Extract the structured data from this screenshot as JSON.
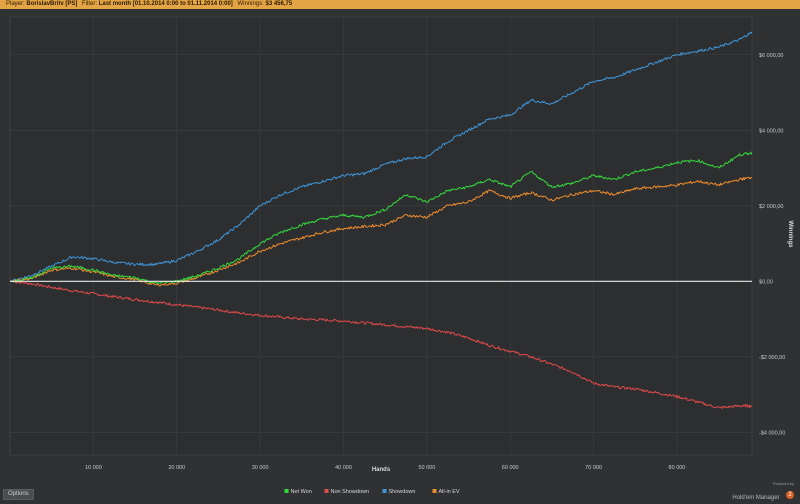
{
  "header": {
    "player_label": "Player:",
    "player_value": "BorislavBritv [PS]",
    "filter_label": "Filter:",
    "filter_value": "Last month [01.10.2014 0:00 to 01.11.2014 0:00]",
    "winnings_label": "Winnings:",
    "winnings_value": "$3 456,75"
  },
  "footer": {
    "options_label": "Options",
    "powered_by": "Powered by",
    "brand_name": "Hold'em Manager",
    "brand_logo": "2"
  },
  "colors": {
    "net_won": "#35d83c",
    "non_showdown": "#e04a4a",
    "showdown": "#3f95d8",
    "all_in_ev": "#ee8c2c",
    "zero_line": "#e8e8e8"
  },
  "chart_data": {
    "type": "line",
    "xlabel": "Hands",
    "ylabel": "Winnings",
    "xlim": [
      0,
      89000
    ],
    "ylim": [
      -4600,
      7000
    ],
    "x_ticks": [
      10000,
      20000,
      30000,
      40000,
      50000,
      60000,
      70000,
      80000
    ],
    "x_tick_labels": [
      "10 000",
      "20 000",
      "30 000",
      "40 000",
      "50 000",
      "60 000",
      "70 000",
      "80 000"
    ],
    "y_ticks": [
      6000,
      4000,
      2000,
      0,
      -2000,
      -4000
    ],
    "y_tick_labels": [
      "$6 000,00",
      "$4 000,00",
      "$2 000,00",
      "$0,00",
      "-$2 000,00",
      "-$4 000,00"
    ],
    "grid": true,
    "legend_position": "bottom-center",
    "x": [
      0,
      2500,
      5000,
      7500,
      10000,
      12500,
      15000,
      17500,
      20000,
      22500,
      25000,
      27500,
      30000,
      32500,
      35000,
      37500,
      40000,
      42500,
      45000,
      47500,
      50000,
      52500,
      55000,
      57500,
      60000,
      62500,
      65000,
      67500,
      70000,
      72500,
      75000,
      77500,
      80000,
      82500,
      85000,
      87500,
      89000
    ],
    "series": [
      {
        "name": "Net Won",
        "color_key": "net_won",
        "values": [
          0,
          80,
          350,
          400,
          300,
          150,
          100,
          -50,
          0,
          150,
          350,
          600,
          1000,
          1300,
          1500,
          1650,
          1750,
          1700,
          1900,
          2300,
          2100,
          2400,
          2500,
          2700,
          2500,
          2900,
          2500,
          2600,
          2800,
          2700,
          2900,
          3000,
          3150,
          3200,
          3000,
          3350,
          3400
        ]
      },
      {
        "name": "Non Showdown",
        "color_key": "non_showdown",
        "values": [
          0,
          -60,
          -160,
          -250,
          -330,
          -410,
          -480,
          -550,
          -620,
          -690,
          -760,
          -840,
          -900,
          -950,
          -1000,
          -1020,
          -1050,
          -1100,
          -1150,
          -1200,
          -1250,
          -1350,
          -1500,
          -1700,
          -1850,
          -2000,
          -2200,
          -2400,
          -2700,
          -2800,
          -2850,
          -2950,
          -3050,
          -3200,
          -3350,
          -3300,
          -3300
        ]
      },
      {
        "name": "Showdown",
        "color_key": "showdown",
        "values": [
          0,
          150,
          400,
          650,
          600,
          500,
          450,
          450,
          550,
          800,
          1100,
          1500,
          2000,
          2300,
          2500,
          2650,
          2800,
          2850,
          3100,
          3250,
          3300,
          3700,
          4000,
          4300,
          4400,
          4800,
          4700,
          5000,
          5300,
          5400,
          5600,
          5800,
          6000,
          6100,
          6200,
          6400,
          6600
        ]
      },
      {
        "name": "All-in EV",
        "color_key": "all_in_ev",
        "values": [
          0,
          70,
          300,
          350,
          250,
          120,
          50,
          -100,
          -50,
          100,
          300,
          500,
          800,
          1000,
          1150,
          1300,
          1400,
          1450,
          1500,
          1750,
          1700,
          2000,
          2100,
          2400,
          2200,
          2350,
          2150,
          2300,
          2400,
          2300,
          2450,
          2500,
          2550,
          2650,
          2550,
          2700,
          2750
        ]
      }
    ]
  }
}
